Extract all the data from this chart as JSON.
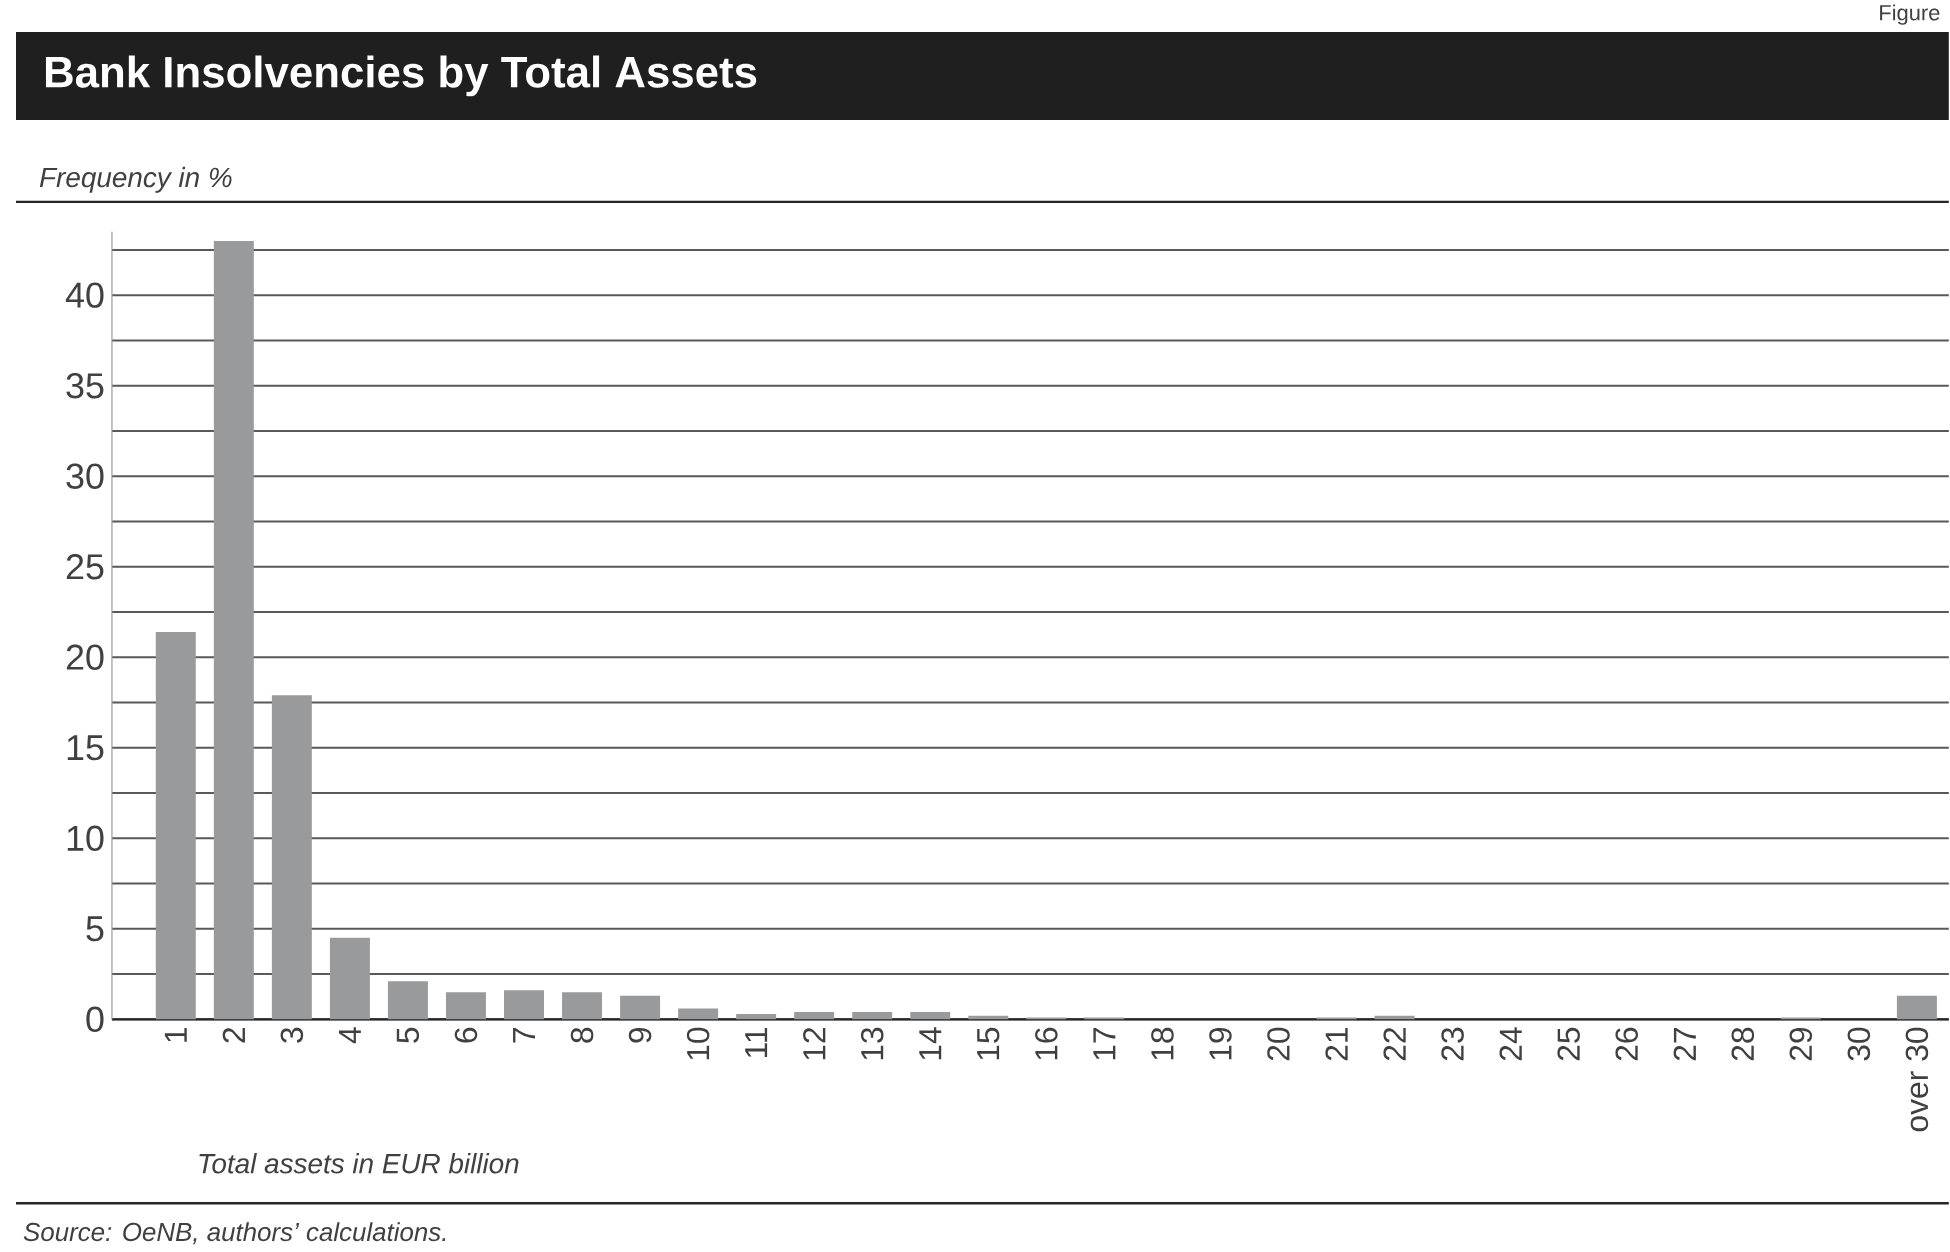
{
  "chart_data": {
    "type": "bar",
    "title": "Bank Insolvencies by Total Assets",
    "ylabel": "Frequency in %",
    "xlabel": "Total assets in EUR billion",
    "annotations": [
      "Figure",
      "Source: OeNB, authors’ calculations."
    ],
    "categories": [
      "1",
      "2",
      "3",
      "4",
      "5",
      "6",
      "7",
      "8",
      "9",
      "10",
      "11",
      "12",
      "13",
      "14",
      "15",
      "16",
      "17",
      "18",
      "19",
      "20",
      "21",
      "22",
      "23",
      "24",
      "25",
      "26",
      "27",
      "28",
      "29",
      "30",
      "over 30"
    ],
    "values": [
      21.4,
      43.0,
      17.9,
      4.5,
      2.1,
      1.5,
      1.6,
      1.5,
      1.3,
      0.6,
      0.3,
      0.4,
      0.4,
      0.4,
      0.2,
      0.1,
      0.1,
      0,
      0,
      0,
      0.1,
      0.2,
      0,
      0,
      0,
      0,
      0,
      0,
      0.1,
      0,
      1.3
    ],
    "color": "#999a9c",
    "ylim": [
      0,
      43.5
    ],
    "yticks": [
      0,
      {
        "value": 2.5,
        "label": null
      },
      5,
      {
        "value": 7.5,
        "label": null
      },
      10,
      {
        "value": 12.5,
        "label": null
      },
      15,
      {
        "value": 17.5,
        "label": null
      },
      20,
      {
        "value": 22.5,
        "label": null
      },
      25,
      {
        "value": 27.5,
        "label": null
      },
      30,
      {
        "value": 32.5,
        "label": null
      },
      35,
      {
        "value": 37.5,
        "label": null
      },
      40,
      {
        "value": 42.5,
        "label": null
      }
    ],
    "grid": "y"
  }
}
